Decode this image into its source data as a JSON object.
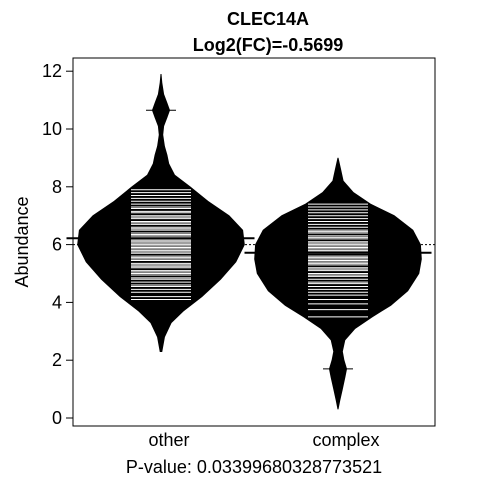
{
  "chart_data": {
    "type": "beanplot",
    "title": "CLEC14A",
    "subtitle": "Log2(FC)=-0.5699",
    "xlabel": "",
    "ylabel": "Abundance",
    "footer": "P-value: 0.03399680328773521",
    "ylim": [
      0,
      12.3
    ],
    "yticks": [
      0,
      2,
      4,
      6,
      8,
      10,
      12
    ],
    "categories": [
      "other",
      "complex"
    ],
    "overall_mean": 6.0,
    "series": [
      {
        "name": "other",
        "mean": 6.22,
        "min": 2.3,
        "max": 11.9,
        "density": [
          [
            2.3,
            0.01
          ],
          [
            2.8,
            0.04
          ],
          [
            3.3,
            0.12
          ],
          [
            3.7,
            0.26
          ],
          [
            4.2,
            0.48
          ],
          [
            4.8,
            0.7
          ],
          [
            5.4,
            0.88
          ],
          [
            6.0,
            0.98
          ],
          [
            6.5,
            0.96
          ],
          [
            7.0,
            0.8
          ],
          [
            7.5,
            0.55
          ],
          [
            8.0,
            0.34
          ],
          [
            8.4,
            0.16
          ],
          [
            8.8,
            0.09
          ],
          [
            9.1,
            0.07
          ],
          [
            9.4,
            0.04
          ],
          [
            9.8,
            0.02
          ],
          [
            10.1,
            0.03
          ],
          [
            10.4,
            0.07
          ],
          [
            10.65,
            0.1
          ],
          [
            10.9,
            0.07
          ],
          [
            11.2,
            0.03
          ],
          [
            11.6,
            0.01
          ],
          [
            11.9,
            0.0
          ]
        ],
        "points": [
          3.65,
          3.9,
          4.1,
          4.2,
          4.35,
          4.45,
          4.55,
          4.6,
          4.7,
          4.8,
          4.85,
          4.95,
          5.0,
          5.05,
          5.1,
          5.2,
          5.25,
          5.3,
          5.35,
          5.45,
          5.5,
          5.55,
          5.6,
          5.7,
          5.75,
          5.8,
          5.85,
          5.9,
          5.95,
          6.0,
          6.05,
          6.1,
          6.15,
          6.2,
          6.25,
          6.3,
          6.35,
          6.4,
          6.5,
          6.55,
          6.6,
          6.7,
          6.75,
          6.8,
          6.9,
          6.95,
          7.0,
          7.1,
          7.15,
          7.25,
          7.3,
          7.4,
          7.5,
          7.6,
          7.7,
          7.8,
          7.9,
          8.0,
          8.1,
          8.2,
          10.65
        ]
      },
      {
        "name": "complex",
        "mean": 5.72,
        "min": 0.3,
        "max": 9.0,
        "density": [
          [
            0.3,
            0.0
          ],
          [
            0.6,
            0.02
          ],
          [
            1.0,
            0.05
          ],
          [
            1.4,
            0.08
          ],
          [
            1.7,
            0.1
          ],
          [
            2.0,
            0.07
          ],
          [
            2.3,
            0.05
          ],
          [
            2.7,
            0.08
          ],
          [
            3.1,
            0.2
          ],
          [
            3.5,
            0.4
          ],
          [
            3.9,
            0.62
          ],
          [
            4.4,
            0.82
          ],
          [
            5.0,
            0.95
          ],
          [
            5.5,
            0.98
          ],
          [
            6.0,
            0.97
          ],
          [
            6.5,
            0.88
          ],
          [
            7.0,
            0.66
          ],
          [
            7.4,
            0.38
          ],
          [
            7.8,
            0.18
          ],
          [
            8.2,
            0.06
          ],
          [
            8.6,
            0.03
          ],
          [
            9.0,
            0.0
          ]
        ],
        "points": [
          1.7,
          3.5,
          3.75,
          3.95,
          4.1,
          4.25,
          4.35,
          4.45,
          4.55,
          4.65,
          4.7,
          4.8,
          4.9,
          4.95,
          5.0,
          5.1,
          5.15,
          5.2,
          5.3,
          5.35,
          5.4,
          5.45,
          5.5,
          5.55,
          5.6,
          5.7,
          5.75,
          5.8,
          5.85,
          5.9,
          5.95,
          6.0,
          6.05,
          6.1,
          6.2,
          6.25,
          6.3,
          6.4,
          6.45,
          6.5,
          6.6,
          6.7,
          6.8,
          6.9,
          7.0,
          7.1,
          7.2,
          7.3,
          7.4,
          7.5
        ]
      }
    ]
  }
}
